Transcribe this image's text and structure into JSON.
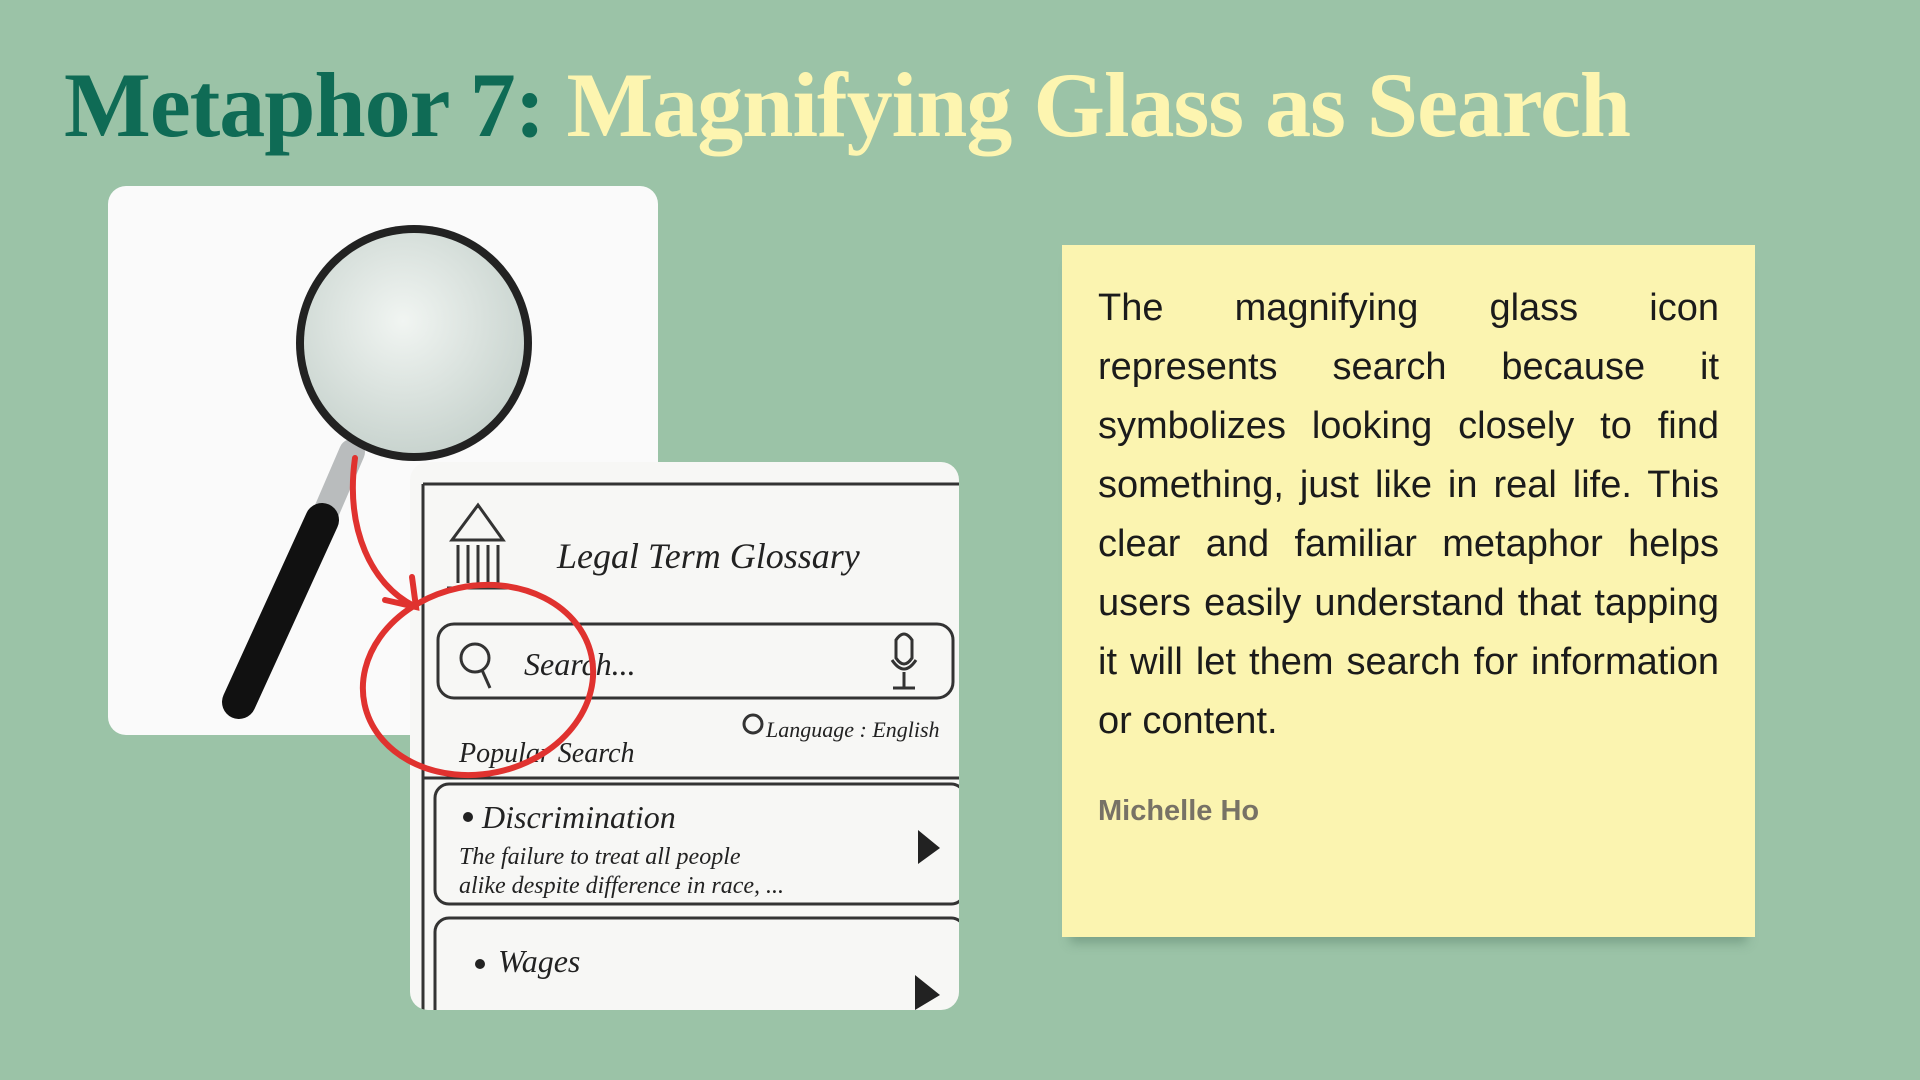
{
  "header": {
    "title_label": "Metaphor 7:",
    "title_text": "Magnifying Glass as Search"
  },
  "sketch": {
    "app_title": "Legal Term Glossary",
    "search_placeholder": "Search...",
    "language": "Language : English",
    "popular": "Popular Search",
    "items": [
      {
        "term": "Discrimination",
        "desc_1": "The failure to treat all people",
        "desc_2": "alike despite difference in race, ..."
      },
      {
        "term": "Wages"
      }
    ]
  },
  "note": {
    "body": "The magnifying glass icon represents search because it symbolizes looking closely to find something, just like in real life. This clear and familiar metaphor helps users easily understand that tapping it will let them search for information or content.",
    "author": "Michelle Ho"
  }
}
